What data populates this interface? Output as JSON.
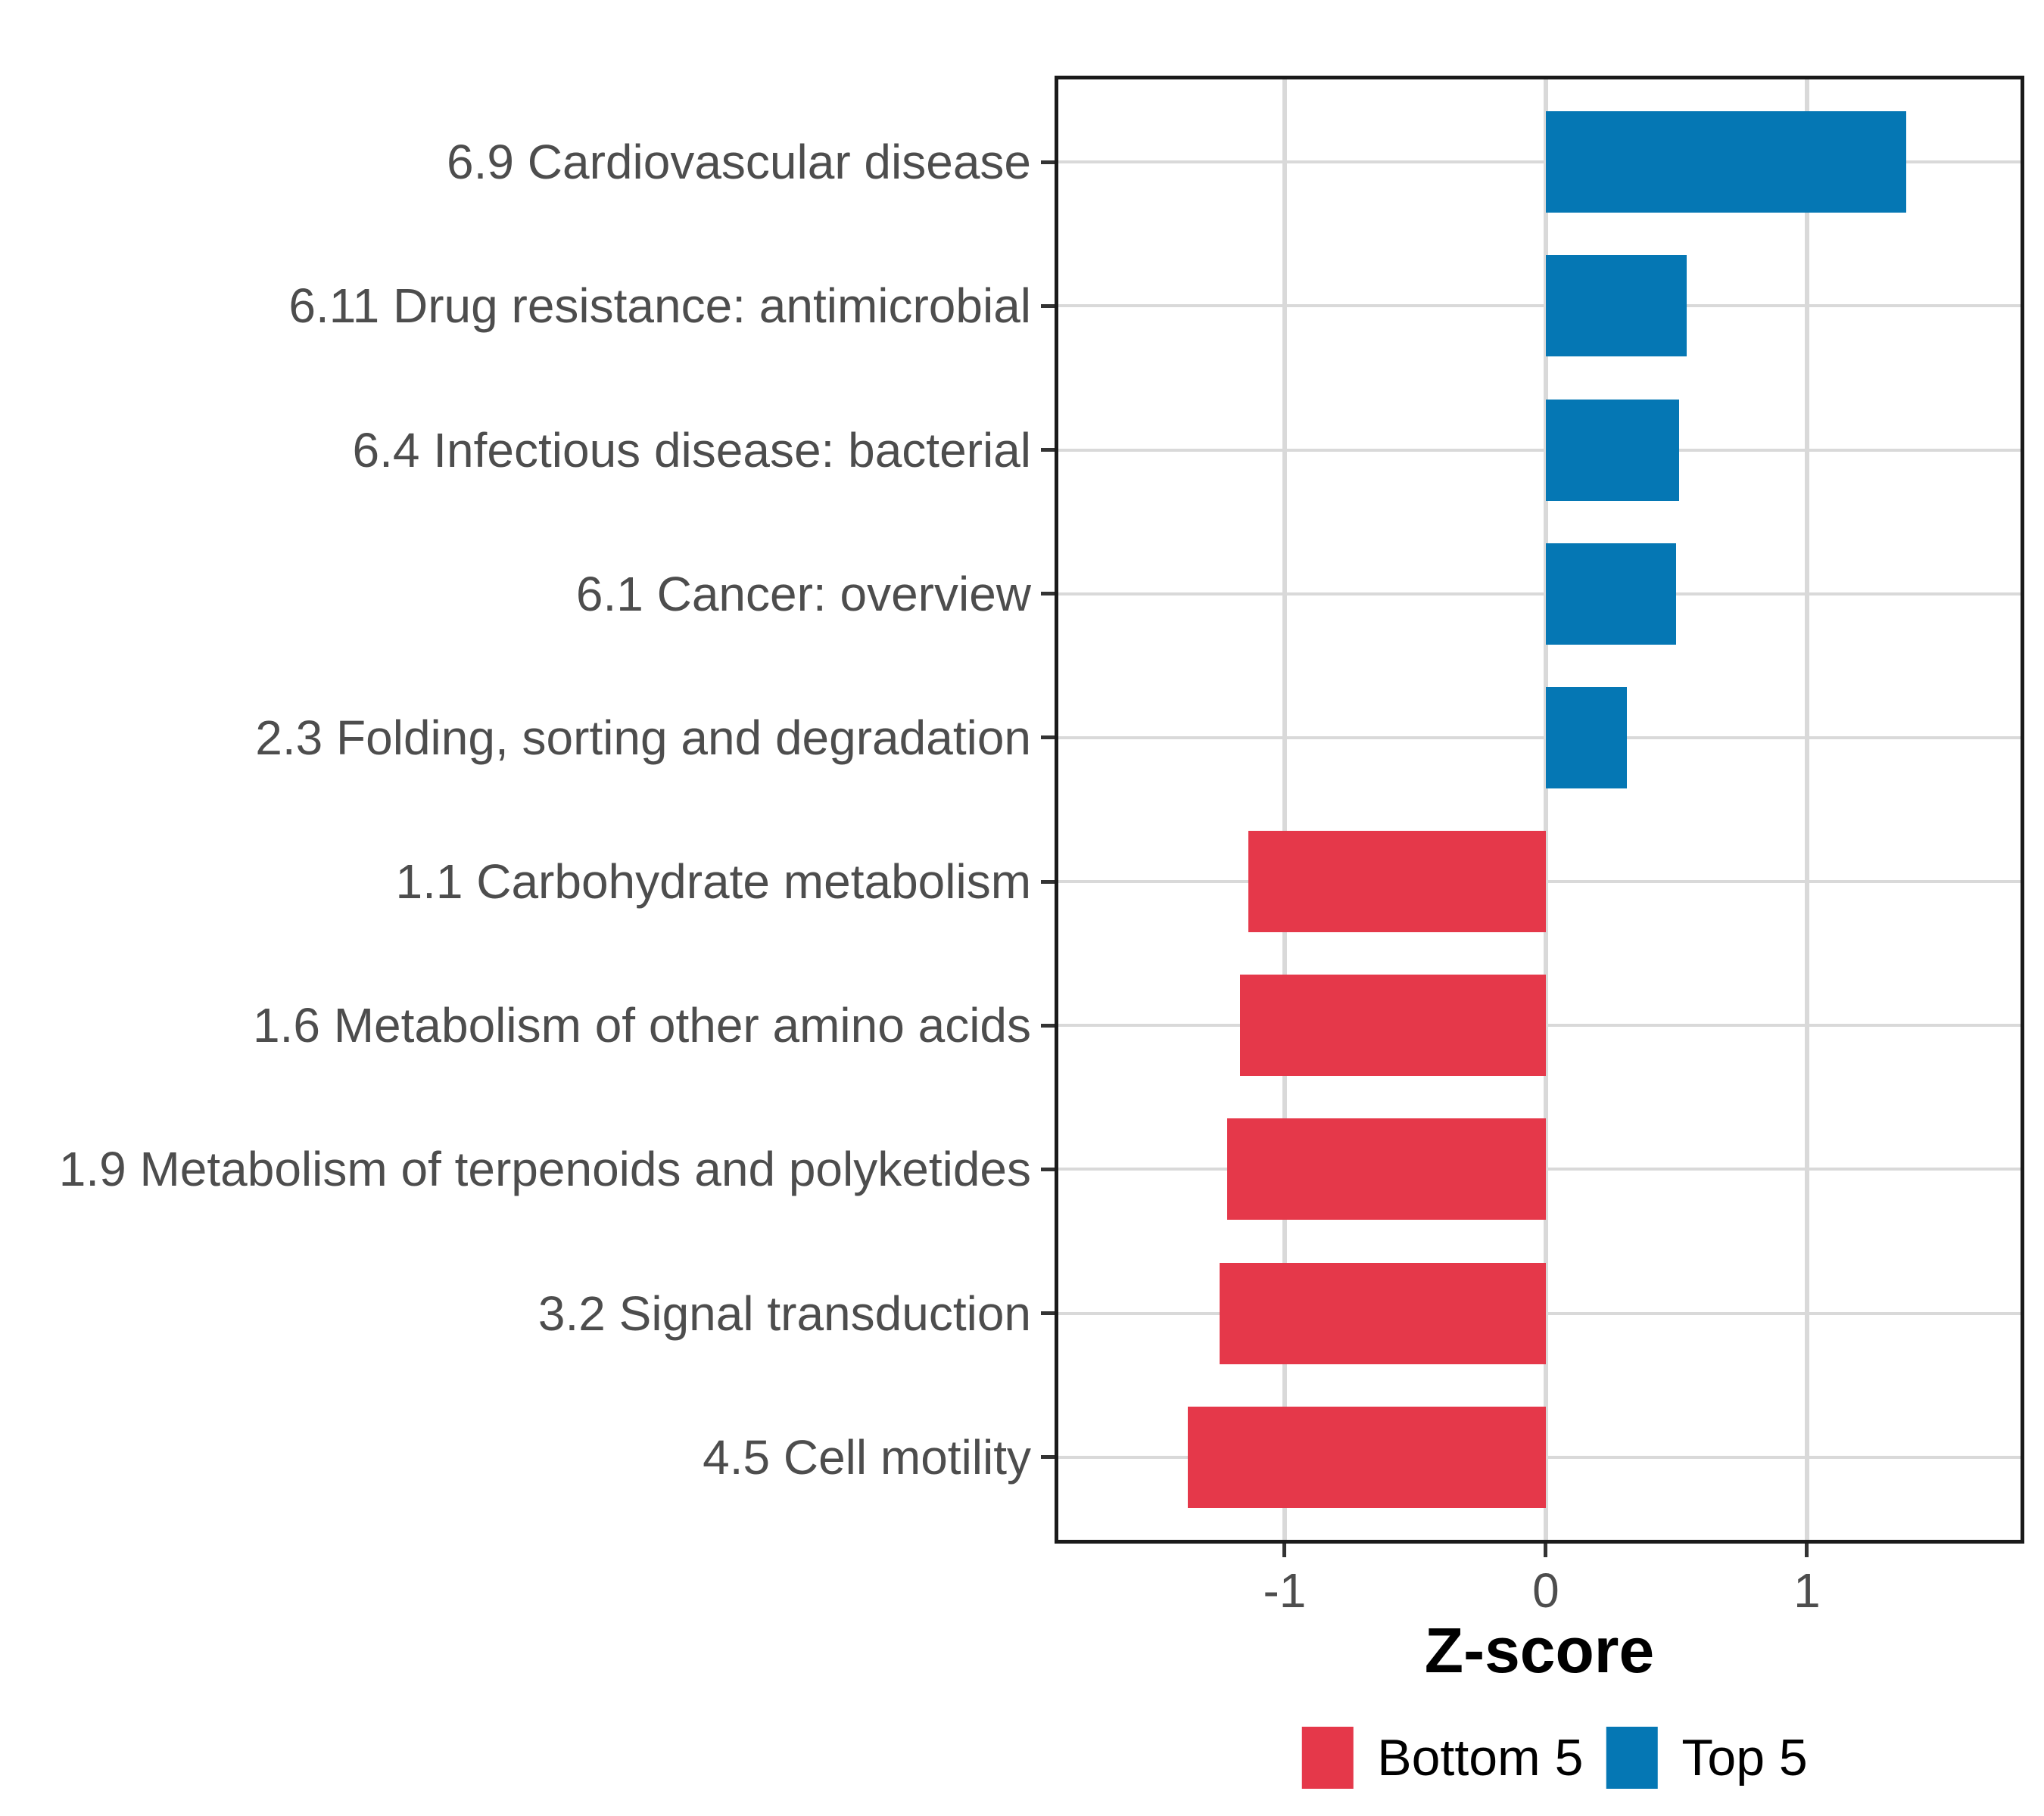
{
  "chart_data": {
    "type": "bar",
    "orientation": "horizontal",
    "title": "",
    "xlabel": "Z-score",
    "ylabel": "",
    "x_tick_labels": [
      "-1",
      "0",
      "1"
    ],
    "x_tick_values": [
      -1,
      0,
      1
    ],
    "xlim": [
      -1.881,
      1.832
    ],
    "grid": true,
    "legend_position": "bottom",
    "bar_order_note": "top to bottom",
    "bars": [
      {
        "label": "6.9 Cardiovascular disease",
        "value": 1.38,
        "group": "Top 5"
      },
      {
        "label": "6.11 Drug resistance: antimicrobial",
        "value": 0.54,
        "group": "Top 5"
      },
      {
        "label": "6.4 Infectious disease: bacterial",
        "value": 0.51,
        "group": "Top 5"
      },
      {
        "label": "6.1 Cancer: overview",
        "value": 0.5,
        "group": "Top 5"
      },
      {
        "label": "2.3 Folding, sorting and degradation",
        "value": 0.31,
        "group": "Top 5"
      },
      {
        "label": "1.1 Carbohydrate metabolism",
        "value": -1.14,
        "group": "Bottom 5"
      },
      {
        "label": "1.6 Metabolism of other amino acids",
        "value": -1.17,
        "group": "Bottom 5"
      },
      {
        "label": "1.9 Metabolism of terpenoids and polyketides",
        "value": -1.22,
        "group": "Bottom 5"
      },
      {
        "label": "3.2 Signal transduction",
        "value": -1.25,
        "group": "Bottom 5"
      },
      {
        "label": "4.5 Cell motility",
        "value": -1.37,
        "group": "Bottom 5"
      }
    ],
    "legend": [
      {
        "label": "Bottom 5",
        "color": "#E5384A"
      },
      {
        "label": "Top 5",
        "color": "#0577B4"
      }
    ],
    "colors": {
      "bottom5": "#E5384A",
      "top5": "#0577B4",
      "grid": "#D9D9D9",
      "panel_border": "#1A1A1A",
      "tick": "#333333",
      "axis_text": "#4D4D4D",
      "title_text": "#000000",
      "background": "#FFFFFF"
    }
  }
}
